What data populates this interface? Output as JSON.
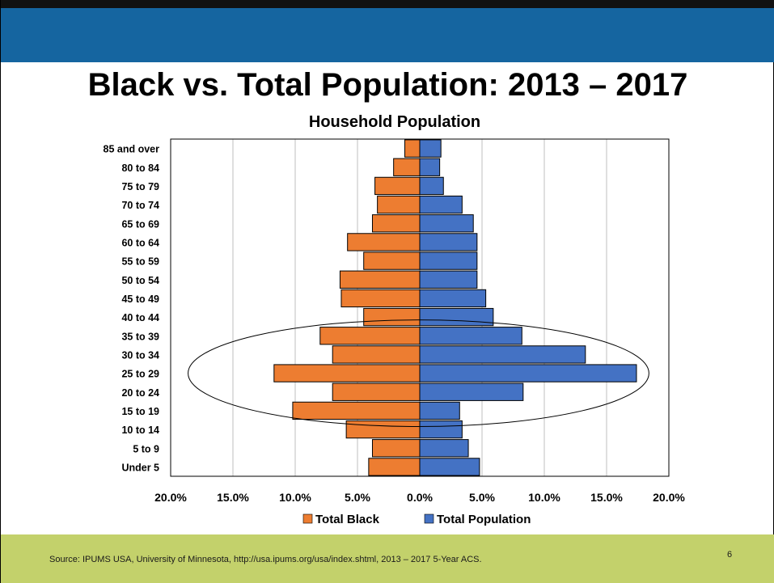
{
  "slide": {
    "title": "Black vs. Total Population: 2013 – 2017",
    "source": "Source: IPUMS USA, University of Minnesota, http://usa.ipums.org/usa/index.shtml, 2013 – 2017 5-Year ACS.",
    "slide_number": "6",
    "colors": {
      "header": "#1565a0",
      "footer": "#c3d16b"
    }
  },
  "chart_data": {
    "type": "bar",
    "orientation": "horizontal-population-pyramid",
    "title": "Household Population",
    "categories": [
      "Under 5",
      "5 to 9",
      "10 to 14",
      "15 to 19",
      "20 to 24",
      "25 to 29",
      "30 to 34",
      "35 to 39",
      "40 to 44",
      "45 to 49",
      "50 to 54",
      "55 to 59",
      "60 to 64",
      "65 to 69",
      "70 to 74",
      "75 to 79",
      "80 to 84",
      "85 and over"
    ],
    "series": [
      {
        "name": "Total Black",
        "color": "#ed7d31",
        "side": "left",
        "values": [
          4.1,
          3.8,
          5.9,
          10.2,
          7.0,
          11.7,
          7.0,
          8.0,
          4.5,
          6.3,
          6.4,
          4.5,
          5.8,
          3.8,
          3.4,
          3.6,
          2.1,
          1.2
        ]
      },
      {
        "name": "Total Population",
        "color": "#4472c4",
        "side": "right",
        "values": [
          4.8,
          3.9,
          3.4,
          3.2,
          8.3,
          17.4,
          13.3,
          8.2,
          5.9,
          5.3,
          4.6,
          4.6,
          4.6,
          4.3,
          3.4,
          1.9,
          1.6,
          1.7
        ]
      }
    ],
    "xlim": [
      -20,
      20
    ],
    "xticks": [
      "20.0%",
      "15.0%",
      "10.0%",
      "5.0%",
      "0.0%",
      "5.0%",
      "10.0%",
      "15.0%",
      "20.0%"
    ],
    "grid": "vertical",
    "legend": "bottom",
    "annotation": {
      "type": "ellipse",
      "around": [
        "15 to 19",
        "35 to 39"
      ]
    }
  }
}
